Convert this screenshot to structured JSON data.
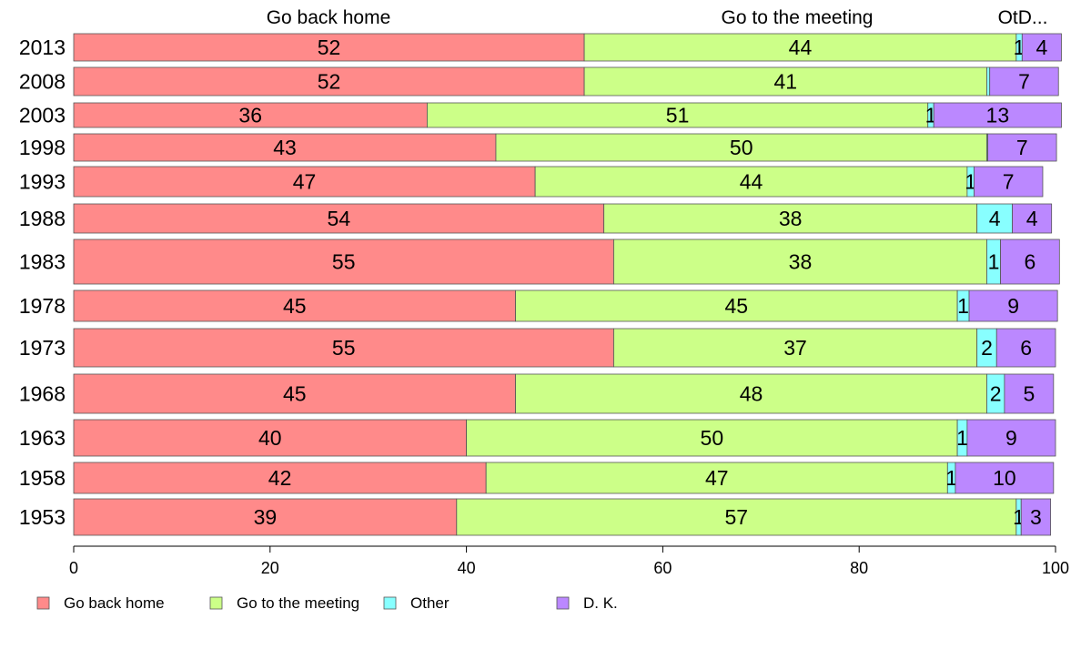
{
  "chart_data": {
    "type": "bar",
    "orientation": "horizontal",
    "stacked": true,
    "header_labels": [
      "Go back home",
      "Go to the meeting",
      "OtD..."
    ],
    "categories": [
      "2013",
      "2008",
      "2003",
      "1998",
      "1993",
      "1988",
      "1983",
      "1978",
      "1973",
      "1968",
      "1963",
      "1958",
      "1953"
    ],
    "series": [
      {
        "name": "Go back home",
        "color": "#ff8a8a",
        "values": [
          52,
          52,
          36,
          43,
          47,
          54,
          55,
          45,
          55,
          45,
          40,
          42,
          39
        ],
        "labels": [
          "52",
          "52",
          "36",
          "43",
          "47",
          "54",
          "55",
          "45",
          "55",
          "45",
          "40",
          "42",
          "39"
        ]
      },
      {
        "name": "Go to the meeting",
        "color": "#ccff88",
        "values": [
          44,
          41,
          51,
          50,
          44,
          38,
          38,
          45,
          37,
          48,
          50,
          47,
          57
        ],
        "labels": [
          "44",
          "41",
          "51",
          "50",
          "44",
          "38",
          "38",
          "45",
          "37",
          "48",
          "50",
          "47",
          "57"
        ]
      },
      {
        "name": "Other",
        "color": "#88ffff",
        "values": [
          0.6,
          0.3,
          0.6,
          0.1,
          0.7,
          3.6,
          1.4,
          1.2,
          2.0,
          1.8,
          1.0,
          0.8,
          0.5
        ],
        "labels": [
          "1",
          "",
          "1",
          "",
          "1",
          "4",
          "1",
          "1",
          "2",
          "2",
          "1",
          "1",
          "1"
        ]
      },
      {
        "name": "D. K.",
        "color": "#bb88ff",
        "values": [
          4,
          7,
          13,
          7,
          7,
          4,
          6,
          9,
          6,
          5,
          9,
          10,
          3
        ],
        "labels": [
          "4",
          "7",
          "13",
          "7",
          "7",
          "4",
          "6",
          "9",
          "6",
          "5",
          "9",
          "10",
          "3"
        ]
      }
    ],
    "xlim": [
      0,
      100
    ],
    "xticks": [
      "0",
      "20",
      "40",
      "60",
      "80",
      "100"
    ],
    "grid": false,
    "legend_position": "bottom"
  }
}
